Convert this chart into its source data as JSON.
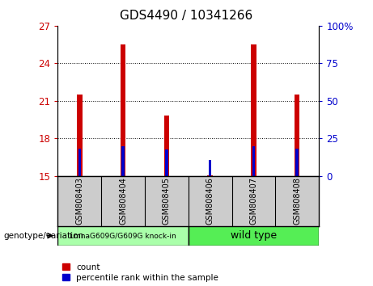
{
  "title": "GDS4490 / 10341266",
  "samples": [
    "GSM808403",
    "GSM808404",
    "GSM808405",
    "GSM808406",
    "GSM808407",
    "GSM808408"
  ],
  "red_values": [
    21.5,
    25.5,
    19.8,
    15.05,
    25.5,
    21.5
  ],
  "blue_values": [
    17.2,
    17.35,
    17.1,
    16.3,
    17.35,
    17.2
  ],
  "y_min": 15,
  "y_max": 27,
  "y_ticks_left": [
    15,
    18,
    21,
    24,
    27
  ],
  "y_ticks_right_labels": [
    "0",
    "25",
    "50",
    "75",
    "100%"
  ],
  "y_ticks_right_vals": [
    15,
    18,
    21,
    24,
    27
  ],
  "bar_width": 0.12,
  "red_color": "#cc0000",
  "blue_color": "#0000cc",
  "left_tick_color": "#cc0000",
  "right_tick_color": "#0000cc",
  "group1_label": "LmnaG609G/G609G knock-in",
  "group2_label": "wild type",
  "group1_color": "#aaffaa",
  "group2_color": "#55ee55",
  "genotype_label": "genotype/variation",
  "legend_count": "count",
  "legend_percentile": "percentile rank within the sample",
  "sample_box_color": "#cccccc",
  "plot_bg_color": "#ffffff",
  "title_fontsize": 11,
  "tick_fontsize": 8.5,
  "grid_yticks": [
    18,
    21,
    24
  ]
}
